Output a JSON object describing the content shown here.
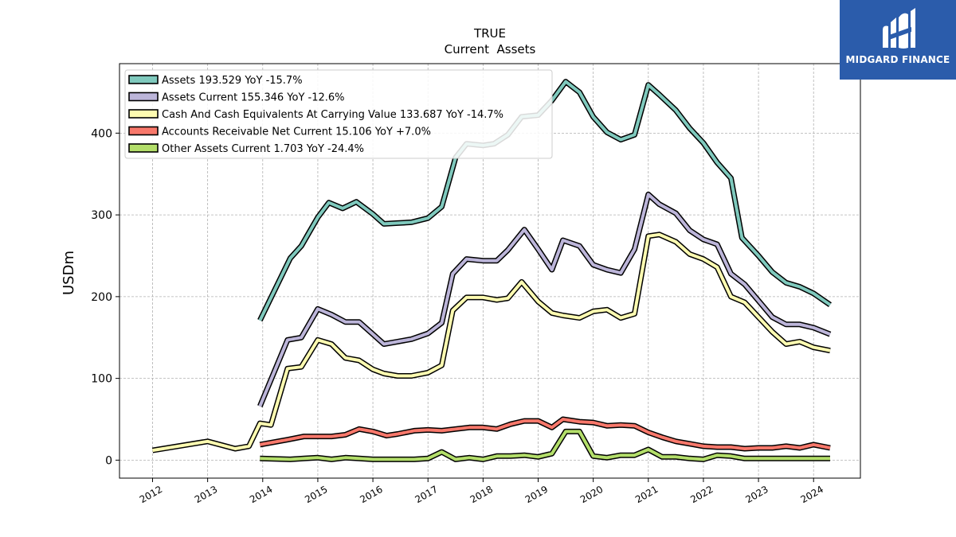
{
  "header": {
    "title": "TRUE",
    "subtitle": "Current  Assets"
  },
  "logo": {
    "text": "MIDGARD FINANCE",
    "background": "#2b5cab",
    "icon": "midgard-logo-icon"
  },
  "chart_data": {
    "type": "line",
    "title": "TRUE",
    "subtitle": "Current  Assets",
    "ylabel": "USDm",
    "xlabel": "",
    "ylim": [
      -22,
      485
    ],
    "xlim": [
      2011.4,
      2024.85
    ],
    "yticks": [
      0,
      100,
      200,
      300,
      400
    ],
    "xticks": [
      "2012",
      "2013",
      "2014",
      "2015",
      "2016",
      "2017",
      "2018",
      "2019",
      "2020",
      "2021",
      "2022",
      "2023",
      "2024"
    ],
    "grid": true,
    "legend_position": "top-left",
    "series": [
      {
        "name": "Assets  193.529 YoY -15.7%",
        "color": "#7fc9bd",
        "x": [
          2013.95,
          2014.5,
          2014.7,
          2015.0,
          2015.2,
          2015.45,
          2015.7,
          2016.0,
          2016.2,
          2016.45,
          2016.7,
          2017.0,
          2017.25,
          2017.5,
          2017.7,
          2018.0,
          2018.2,
          2018.45,
          2018.7,
          2019.0,
          2019.25,
          2019.5,
          2019.75,
          2020.0,
          2020.25,
          2020.5,
          2020.75,
          2021.0,
          2021.2,
          2021.5,
          2021.75,
          2022.0,
          2022.25,
          2022.5,
          2022.7,
          2023.0,
          2023.25,
          2023.5,
          2023.75,
          2024.0,
          2024.3
        ],
        "values": [
          171,
          247,
          262,
          297,
          315,
          308,
          316,
          301,
          289,
          290,
          291,
          296,
          310,
          370,
          387,
          385,
          387,
          398,
          420,
          422,
          440,
          463,
          450,
          420,
          401,
          392,
          398,
          459,
          447,
          428,
          406,
          388,
          364,
          345,
          272,
          250,
          230,
          217,
          212,
          204,
          190
        ]
      },
      {
        "name": "Assets Current  155.346 YoY -12.6%",
        "color": "#bcb5d9",
        "x": [
          2013.95,
          2014.45,
          2014.7,
          2015.0,
          2015.25,
          2015.5,
          2015.75,
          2016.0,
          2016.2,
          2016.45,
          2016.7,
          2017.0,
          2017.25,
          2017.45,
          2017.7,
          2018.0,
          2018.25,
          2018.45,
          2018.75,
          2019.0,
          2019.25,
          2019.45,
          2019.75,
          2020.0,
          2020.25,
          2020.5,
          2020.75,
          2021.0,
          2021.2,
          2021.5,
          2021.75,
          2022.0,
          2022.25,
          2022.5,
          2022.75,
          2023.0,
          2023.25,
          2023.5,
          2023.75,
          2024.0,
          2024.3
        ],
        "values": [
          66,
          147,
          150,
          185,
          178,
          169,
          169,
          154,
          142,
          145,
          148,
          155,
          168,
          228,
          246,
          244,
          244,
          257,
          282,
          258,
          233,
          269,
          262,
          239,
          233,
          229,
          258,
          325,
          313,
          302,
          281,
          270,
          264,
          228,
          215,
          195,
          175,
          166,
          166,
          162,
          154
        ]
      },
      {
        "name": "Cash And Cash Equivalents At Carrying Value  133.687 YoY -14.7%",
        "color": "#fdfbb1",
        "x": [
          2012.0,
          2013.0,
          2013.5,
          2013.75,
          2013.95,
          2014.15,
          2014.45,
          2014.7,
          2015.0,
          2015.25,
          2015.5,
          2015.75,
          2016.0,
          2016.2,
          2016.45,
          2016.7,
          2017.0,
          2017.25,
          2017.45,
          2017.7,
          2018.0,
          2018.25,
          2018.45,
          2018.7,
          2019.0,
          2019.25,
          2019.45,
          2019.75,
          2020.0,
          2020.25,
          2020.5,
          2020.75,
          2021.0,
          2021.2,
          2021.5,
          2021.75,
          2022.0,
          2022.25,
          2022.5,
          2022.75,
          2023.0,
          2023.25,
          2023.5,
          2023.75,
          2024.0,
          2024.3
        ],
        "values": [
          12,
          23,
          14,
          17,
          45,
          43,
          112,
          114,
          147,
          142,
          125,
          122,
          111,
          106,
          103,
          103,
          107,
          116,
          183,
          199,
          199,
          196,
          198,
          218,
          194,
          180,
          177,
          174,
          182,
          184,
          174,
          179,
          274,
          276,
          267,
          252,
          246,
          236,
          200,
          193,
          175,
          157,
          142,
          145,
          138,
          134
        ]
      },
      {
        "name": "Accounts Receivable Net Current  15.106 YoY +7.0%",
        "color": "#f8786b",
        "x": [
          2013.95,
          2014.45,
          2014.75,
          2015.0,
          2015.25,
          2015.5,
          2015.75,
          2016.0,
          2016.25,
          2016.45,
          2016.75,
          2017.0,
          2017.25,
          2017.5,
          2017.75,
          2018.0,
          2018.25,
          2018.5,
          2018.75,
          2019.0,
          2019.25,
          2019.45,
          2019.75,
          2020.0,
          2020.25,
          2020.5,
          2020.75,
          2021.0,
          2021.25,
          2021.5,
          2021.75,
          2022.0,
          2022.25,
          2022.5,
          2022.75,
          2023.0,
          2023.25,
          2023.5,
          2023.75,
          2024.0,
          2024.3
        ],
        "values": [
          19,
          25,
          29,
          29,
          29,
          31,
          38,
          35,
          30,
          32,
          36,
          37,
          36,
          38,
          40,
          40,
          38,
          44,
          48,
          48,
          40,
          50,
          47,
          46,
          42,
          43,
          42,
          34,
          28,
          23,
          20,
          17,
          16,
          16,
          14,
          15,
          15,
          17,
          15,
          19,
          15
        ]
      },
      {
        "name": "Other Assets Current  1.703 YoY -24.4%",
        "color": "#b3de6a",
        "x": [
          2013.95,
          2014.5,
          2014.75,
          2015.0,
          2015.25,
          2015.5,
          2015.75,
          2016.0,
          2016.25,
          2016.5,
          2016.75,
          2017.0,
          2017.25,
          2017.5,
          2017.75,
          2018.0,
          2018.25,
          2018.5,
          2018.75,
          2019.0,
          2019.25,
          2019.5,
          2019.75,
          2020.0,
          2020.25,
          2020.5,
          2020.75,
          2021.0,
          2021.25,
          2021.5,
          2021.75,
          2022.0,
          2022.25,
          2022.5,
          2022.75,
          2023.0,
          2023.25,
          2023.5,
          2023.75,
          2024.0,
          2024.3
        ],
        "values": [
          2,
          1,
          2,
          3,
          1,
          3,
          2,
          1,
          1,
          1,
          1,
          2,
          10,
          1,
          3,
          1,
          5,
          5,
          6,
          4,
          8,
          35,
          35,
          5,
          3,
          6,
          6,
          13,
          4,
          4,
          2,
          1,
          6,
          5,
          2,
          2,
          2,
          2,
          2,
          2,
          2
        ]
      }
    ]
  }
}
